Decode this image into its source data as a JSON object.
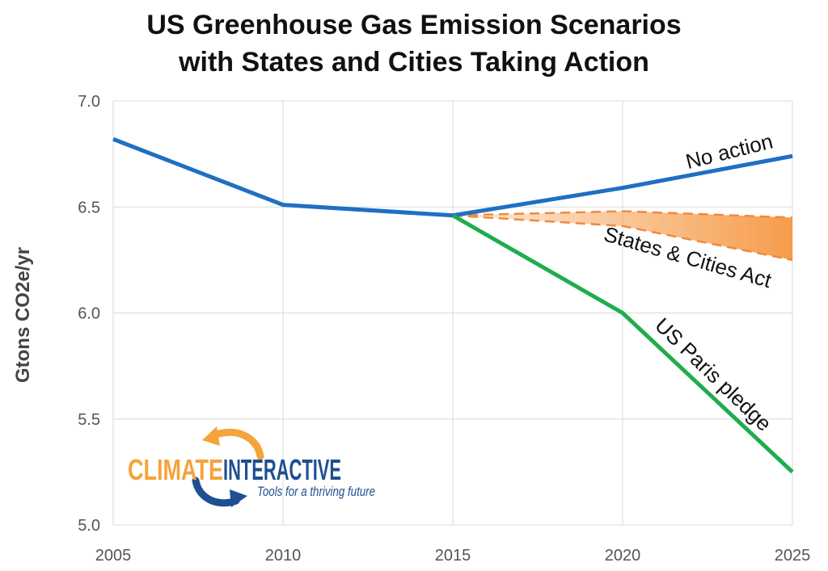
{
  "chart_data": {
    "type": "line",
    "title_line1": "US Greenhouse Gas Emission Scenarios",
    "title_line2": "with States and Cities Taking Action",
    "xlabel": "",
    "ylabel": "Gtons CO2e/yr",
    "xlim": [
      2005,
      2025
    ],
    "ylim": [
      5.0,
      7.0
    ],
    "x_ticks": [
      "2005",
      "2010",
      "2015",
      "2020",
      "2025"
    ],
    "y_ticks": [
      "5.0",
      "5.5",
      "6.0",
      "6.5",
      "7.0"
    ],
    "grid": true,
    "series": [
      {
        "name": "No action",
        "color": "#1f6fc4",
        "x": [
          2005,
          2010,
          2015,
          2020,
          2025
        ],
        "y": [
          6.82,
          6.51,
          6.46,
          6.59,
          6.74
        ]
      },
      {
        "name": "US Paris pledge",
        "color": "#1fad4d",
        "x": [
          2015,
          2020,
          2025
        ],
        "y": [
          6.46,
          6.0,
          5.25
        ]
      },
      {
        "name": "States & Cities Act",
        "color": "#f08a3c",
        "style": "dashed-band",
        "x": [
          2015,
          2020,
          2025
        ],
        "upper": [
          6.46,
          6.48,
          6.45
        ],
        "lower": [
          6.46,
          6.41,
          6.25
        ]
      }
    ]
  },
  "logo": {
    "word1": "CLIMATE",
    "word2": "INTERACTIVE",
    "tagline": "Tools for a thriving future",
    "color_orange": "#f5a33b",
    "color_blue": "#1d4f91"
  }
}
